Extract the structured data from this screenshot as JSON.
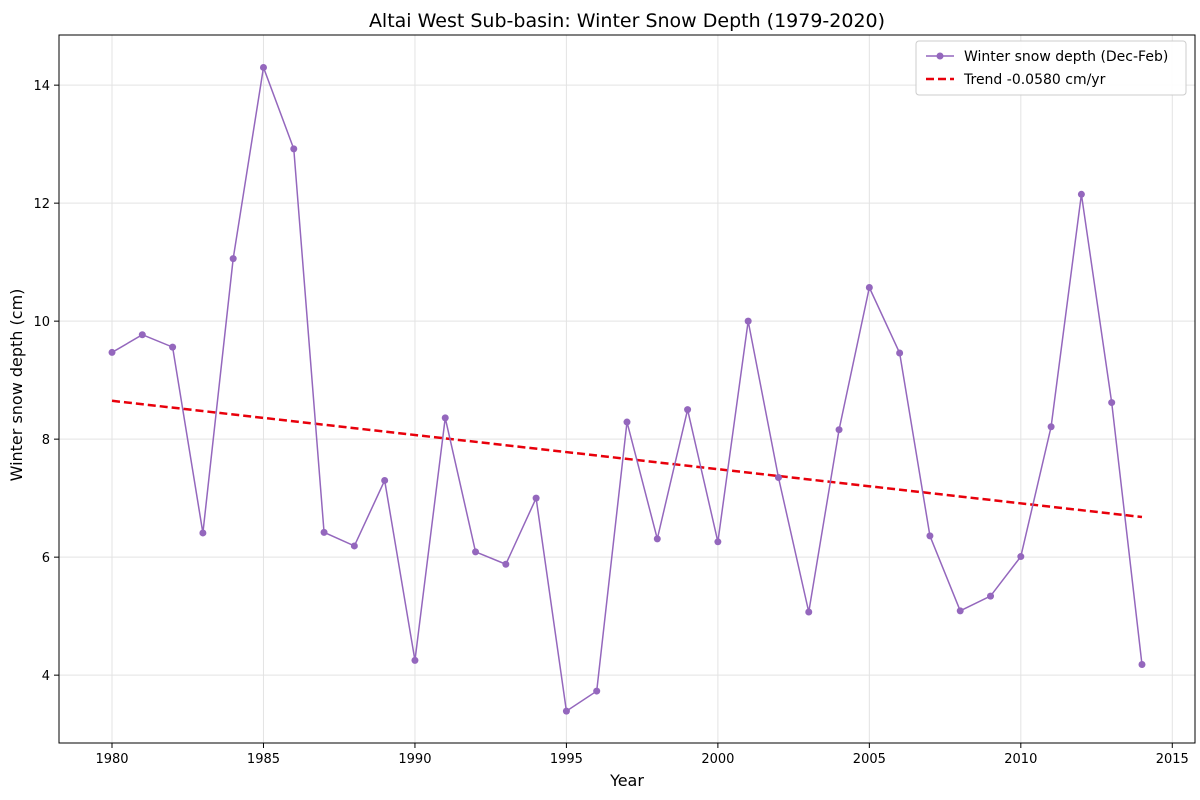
{
  "chart_data": {
    "type": "line",
    "title": "Altai West Sub-basin: Winter Snow Depth (1979-2020)",
    "xlabel": "Year",
    "ylabel": "Winter snow depth (cm)",
    "xlim": [
      1978.25,
      2015.75
    ],
    "ylim": [
      2.85,
      14.85
    ],
    "xticks": [
      1980,
      1985,
      1990,
      1995,
      2000,
      2005,
      2010,
      2015
    ],
    "yticks": [
      4,
      6,
      8,
      10,
      12,
      14
    ],
    "grid": true,
    "legend_position": "top-right",
    "series": [
      {
        "name": "Winter snow depth (Dec-Feb)",
        "style": "line-with-markers",
        "color": "#9467bd",
        "x": [
          1980,
          1981,
          1982,
          1983,
          1984,
          1985,
          1986,
          1987,
          1988,
          1989,
          1990,
          1991,
          1992,
          1993,
          1994,
          1995,
          1996,
          1997,
          1998,
          1999,
          2000,
          2001,
          2002,
          2003,
          2004,
          2005,
          2006,
          2007,
          2008,
          2009,
          2010,
          2011,
          2012,
          2013,
          2014
        ],
        "values": [
          9.47,
          9.77,
          9.56,
          6.41,
          11.06,
          14.3,
          12.92,
          6.42,
          6.19,
          7.3,
          4.25,
          8.36,
          6.09,
          5.88,
          7.0,
          3.39,
          3.73,
          8.29,
          6.31,
          8.5,
          6.26,
          10.0,
          7.35,
          5.07,
          8.16,
          10.57,
          9.46,
          6.36,
          5.09,
          5.34,
          6.01,
          8.21,
          12.15,
          8.62,
          4.18
        ]
      },
      {
        "name": "Trend -0.0580 cm/yr",
        "style": "dashed",
        "color": "#e8000b",
        "x": [
          1980,
          2014
        ],
        "values": [
          8.65,
          6.68
        ]
      }
    ]
  }
}
